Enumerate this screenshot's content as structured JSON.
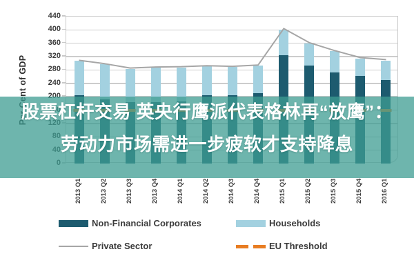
{
  "headline": {
    "line1": "股票杠杆交易 英央行鹰派代表格林再“放鹰”：",
    "line2": "劳动力市场需进一步疲软才支持降息",
    "band_color": "rgba(61,156,146,0.75)",
    "text_color": "#ffffff"
  },
  "chart_data": {
    "type": "bar",
    "title": "",
    "xlabel": "",
    "ylabel": "Per Cent of GDP",
    "ylim": [
      0,
      440
    ],
    "ytick_step": 40,
    "grid": true,
    "legend_position": "bottom",
    "categories": [
      "2013 Q1",
      "2013 Q2",
      "2013 Q3",
      "2013 Q4",
      "2014 Q1",
      "2014 Q2",
      "2014 Q3",
      "2014 Q4",
      "2015 Q1",
      "2015 Q2",
      "2015 Q3",
      "2015 Q4",
      "2016 Q1"
    ],
    "series": [
      {
        "name": "Non-Financial Corporates",
        "kind": "bar",
        "stack": true,
        "color": "#1d5b6f",
        "values": [
          205,
          192,
          183,
          184,
          185,
          205,
          205,
          211,
          324,
          293,
          273,
          262,
          250
        ]
      },
      {
        "name": "Households",
        "kind": "bar",
        "stack": true,
        "color": "#a3d1e0",
        "values": [
          102,
          105,
          101,
          103,
          103,
          86,
          84,
          82,
          76,
          67,
          63,
          53,
          58
        ]
      },
      {
        "name": "Private Sector",
        "kind": "line",
        "color": "#a6a6a6",
        "values": [
          309,
          299,
          286,
          289,
          290,
          293,
          291,
          295,
          404,
          362,
          338,
          317,
          311
        ]
      },
      {
        "name": "EU Threshold",
        "kind": "threshold",
        "color": "#e87d22",
        "value": 160
      }
    ],
    "colors": {
      "gridline": "#cccccc",
      "frame": "#c9c9c9",
      "axis_text": "#3d3d3d"
    }
  }
}
